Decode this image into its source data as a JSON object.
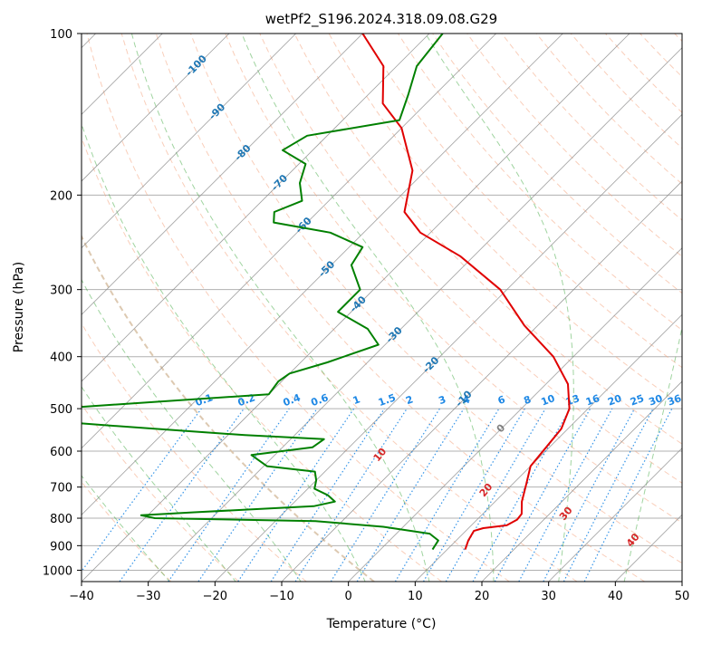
{
  "chart_data": {
    "type": "line",
    "title": "wetPf2_S196.2024.318.09.08.G29",
    "xlabel": "Temperature (°C)",
    "ylabel": "Pressure (hPa)",
    "xlim": [
      -40,
      50
    ],
    "ylim": [
      1050,
      100
    ],
    "y_scale": "log",
    "x_ticks": [
      -40,
      -30,
      -20,
      -10,
      0,
      10,
      20,
      30,
      40,
      50
    ],
    "y_ticks": [
      100,
      200,
      300,
      400,
      500,
      600,
      700,
      800,
      900,
      1000
    ],
    "grid": true,
    "skew": 45,
    "colors": {
      "temperature": "#e00000",
      "dewpoint": "#008000",
      "isotherm": "#888888",
      "dry_adiabat": "#f4a582",
      "moist_adiabat": "#2ca02c",
      "mixing_ratio": "#1e88e5",
      "isotherm_label": "#1f77b4",
      "moist_label": "#d62728"
    },
    "series": [
      {
        "key": "temperature",
        "points": [
          [
            12.7,
            915
          ],
          [
            11.8,
            880
          ],
          [
            11.2,
            845
          ],
          [
            12.2,
            835
          ],
          [
            15.3,
            825
          ],
          [
            16.0,
            805
          ],
          [
            15.8,
            785
          ],
          [
            14.0,
            745
          ],
          [
            12.0,
            690
          ],
          [
            10.0,
            640
          ],
          [
            9.5,
            590
          ],
          [
            9.0,
            545
          ],
          [
            7.2,
            500
          ],
          [
            3.3,
            450
          ],
          [
            -3.0,
            400
          ],
          [
            -12.0,
            350
          ],
          [
            -21.0,
            300
          ],
          [
            -32.0,
            260
          ],
          [
            -41.5,
            235
          ],
          [
            -47.0,
            215
          ],
          [
            -52.0,
            180
          ],
          [
            -60.0,
            150
          ],
          [
            -66.5,
            135
          ],
          [
            -72.0,
            115
          ],
          [
            -80.0,
            100
          ]
        ]
      },
      {
        "key": "dewpoint",
        "points": [
          [
            7.8,
            915
          ],
          [
            7.3,
            880
          ],
          [
            5.0,
            855
          ],
          [
            -3.0,
            830
          ],
          [
            -14.0,
            810
          ],
          [
            -38.5,
            800
          ],
          [
            -41.0,
            790
          ],
          [
            -33.5,
            780
          ],
          [
            -16.5,
            760
          ],
          [
            -14.0,
            745
          ],
          [
            -16.0,
            725
          ],
          [
            -19.0,
            705
          ],
          [
            -20.0,
            680
          ],
          [
            -21.5,
            655
          ],
          [
            -29.5,
            640
          ],
          [
            -33.5,
            610
          ],
          [
            -25.5,
            590
          ],
          [
            -25.0,
            570
          ],
          [
            -37.5,
            560
          ],
          [
            -52.0,
            545
          ],
          [
            -76.0,
            520
          ],
          [
            -90.0,
            515
          ],
          [
            -70.0,
            500
          ],
          [
            -40.0,
            470
          ],
          [
            -40.5,
            445
          ],
          [
            -40.0,
            430
          ],
          [
            -36.0,
            410
          ],
          [
            -31.0,
            380
          ],
          [
            -35.0,
            355
          ],
          [
            -42.0,
            330
          ],
          [
            -42.0,
            300
          ],
          [
            -47.0,
            270
          ],
          [
            -48.0,
            250
          ],
          [
            -55.0,
            235
          ],
          [
            -65.0,
            225
          ],
          [
            -66.5,
            215
          ],
          [
            -64.0,
            205
          ],
          [
            -67.0,
            190
          ],
          [
            -69.0,
            175
          ],
          [
            -74.5,
            165
          ],
          [
            -73.0,
            155
          ],
          [
            -61.5,
            145
          ],
          [
            -64.0,
            130
          ],
          [
            -67.0,
            115
          ],
          [
            -68.0,
            100
          ]
        ]
      }
    ],
    "isotherm_labels": [
      "-100",
      "-90",
      "-80",
      "-70",
      "-60",
      "-50",
      "-40",
      "-30",
      "-20",
      "-10",
      "0"
    ],
    "moist_labels": [
      "10",
      "20",
      "30",
      "40"
    ],
    "mixing_ratio_labels": [
      "0.1",
      "0.2",
      "0.4",
      "0.6",
      "1",
      "1.5",
      "2",
      "3",
      "4",
      "6",
      "8",
      "10",
      "13",
      "16",
      "20",
      "25",
      "30",
      "36"
    ]
  }
}
